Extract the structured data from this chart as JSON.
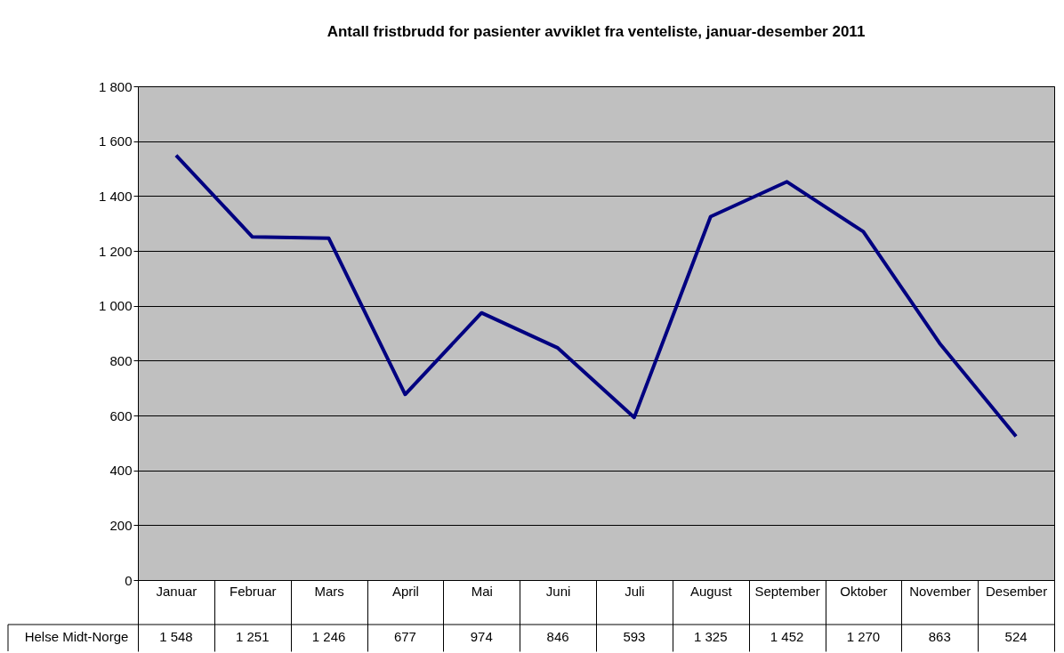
{
  "chart_data": {
    "type": "line",
    "title": "Antall fristbrudd for pasienter avviklet fra venteliste, januar-desember 2011",
    "categories": [
      "Januar",
      "Februar",
      "Mars",
      "April",
      "Mai",
      "Juni",
      "Juli",
      "August",
      "September",
      "Oktober",
      "November",
      "Desember"
    ],
    "series": [
      {
        "name": "Helse Midt-Norge",
        "color": "#000080",
        "values": [
          1548,
          1251,
          1246,
          677,
          974,
          846,
          593,
          1325,
          1452,
          1270,
          863,
          524
        ],
        "value_labels": [
          "1 548",
          "1 251",
          "1 246",
          "677",
          "974",
          "846",
          "593",
          "1 325",
          "1 452",
          "1 270",
          "863",
          "524"
        ]
      }
    ],
    "ylim": [
      0,
      1800
    ],
    "yticks": [
      0,
      200,
      400,
      600,
      800,
      {
        "value": 1000,
        "label": "1 000"
      },
      {
        "value": 1200,
        "label": "1 200"
      },
      {
        "value": 1400,
        "label": "1 400"
      },
      {
        "value": 1600,
        "label": "1 600"
      },
      {
        "value": 1800,
        "label": "1 800"
      }
    ],
    "grid": "y",
    "marker": "none",
    "line_style": "solid"
  }
}
